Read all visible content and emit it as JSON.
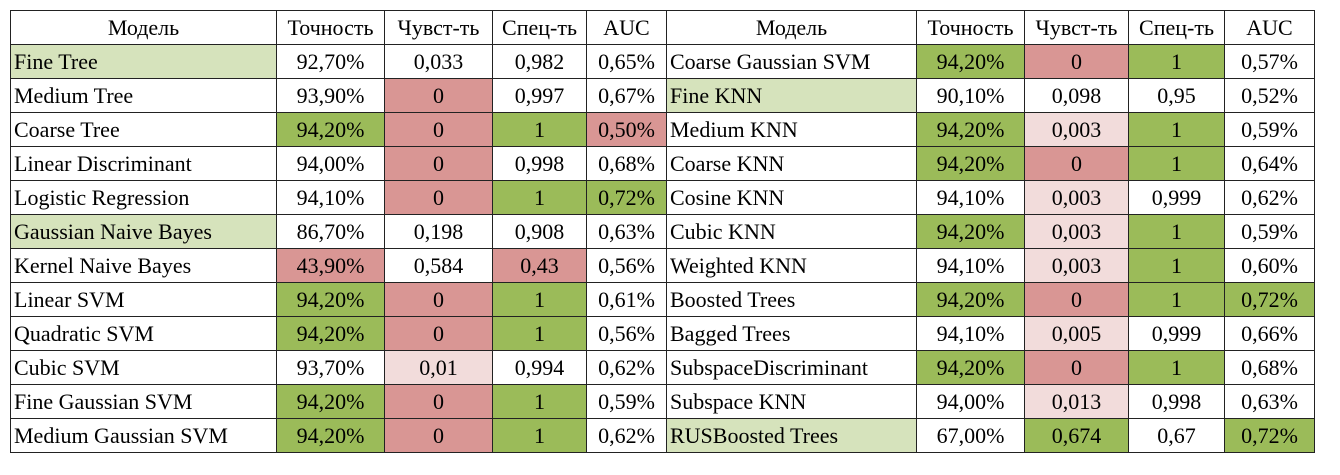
{
  "colors": {
    "lightgreen": "#d6e3bc",
    "green": "#9bbb59",
    "red": "#d99694",
    "pink": "#f2dcdb"
  },
  "headers": [
    "Модель",
    "Точность",
    "Чувст-ть",
    "Спец-ть",
    "AUC",
    "Модель",
    "Точность",
    "Чувст-ть",
    "Спец-ть",
    "AUC"
  ],
  "rows": [
    [
      {
        "text": "Fine Tree",
        "hl": "lightgreen"
      },
      {
        "text": "92,70%",
        "hl": ""
      },
      {
        "text": "0,033",
        "hl": ""
      },
      {
        "text": "0,982",
        "hl": ""
      },
      {
        "text": "0,65%",
        "hl": ""
      },
      {
        "text": "Coarse Gaussian SVM",
        "hl": ""
      },
      {
        "text": "94,20%",
        "hl": "green"
      },
      {
        "text": "0",
        "hl": "red"
      },
      {
        "text": "1",
        "hl": "green"
      },
      {
        "text": "0,57%",
        "hl": ""
      }
    ],
    [
      {
        "text": "Medium Tree",
        "hl": ""
      },
      {
        "text": "93,90%",
        "hl": ""
      },
      {
        "text": "0",
        "hl": "red"
      },
      {
        "text": "0,997",
        "hl": ""
      },
      {
        "text": "0,67%",
        "hl": ""
      },
      {
        "text": "Fine KNN",
        "hl": "lightgreen"
      },
      {
        "text": "90,10%",
        "hl": ""
      },
      {
        "text": "0,098",
        "hl": ""
      },
      {
        "text": "0,95",
        "hl": ""
      },
      {
        "text": "0,52%",
        "hl": ""
      }
    ],
    [
      {
        "text": "Coarse Tree",
        "hl": ""
      },
      {
        "text": "94,20%",
        "hl": "green"
      },
      {
        "text": "0",
        "hl": "red"
      },
      {
        "text": "1",
        "hl": "green"
      },
      {
        "text": "0,50%",
        "hl": "red"
      },
      {
        "text": "Medium KNN",
        "hl": ""
      },
      {
        "text": "94,20%",
        "hl": "green"
      },
      {
        "text": "0,003",
        "hl": "pink"
      },
      {
        "text": "1",
        "hl": "green"
      },
      {
        "text": "0,59%",
        "hl": ""
      }
    ],
    [
      {
        "text": "Linear Discriminant",
        "hl": ""
      },
      {
        "text": "94,00%",
        "hl": ""
      },
      {
        "text": "0",
        "hl": "red"
      },
      {
        "text": "0,998",
        "hl": ""
      },
      {
        "text": "0,68%",
        "hl": ""
      },
      {
        "text": "Coarse KNN",
        "hl": ""
      },
      {
        "text": "94,20%",
        "hl": "green"
      },
      {
        "text": "0",
        "hl": "red"
      },
      {
        "text": "1",
        "hl": "green"
      },
      {
        "text": "0,64%",
        "hl": ""
      }
    ],
    [
      {
        "text": "Logistic Regression",
        "hl": ""
      },
      {
        "text": "94,10%",
        "hl": ""
      },
      {
        "text": "0",
        "hl": "red"
      },
      {
        "text": "1",
        "hl": "green"
      },
      {
        "text": "0,72%",
        "hl": "green"
      },
      {
        "text": "Cosine KNN",
        "hl": ""
      },
      {
        "text": "94,10%",
        "hl": ""
      },
      {
        "text": "0,003",
        "hl": "pink"
      },
      {
        "text": "0,999",
        "hl": ""
      },
      {
        "text": "0,62%",
        "hl": ""
      }
    ],
    [
      {
        "text": "Gaussian Naive Bayes",
        "hl": "lightgreen"
      },
      {
        "text": "86,70%",
        "hl": ""
      },
      {
        "text": "0,198",
        "hl": ""
      },
      {
        "text": "0,908",
        "hl": ""
      },
      {
        "text": "0,63%",
        "hl": ""
      },
      {
        "text": "Cubic KNN",
        "hl": ""
      },
      {
        "text": "94,20%",
        "hl": "green"
      },
      {
        "text": "0,003",
        "hl": "pink"
      },
      {
        "text": "1",
        "hl": "green"
      },
      {
        "text": "0,59%",
        "hl": ""
      }
    ],
    [
      {
        "text": "Kernel Naive Bayes",
        "hl": ""
      },
      {
        "text": "43,90%",
        "hl": "red"
      },
      {
        "text": "0,584",
        "hl": ""
      },
      {
        "text": "0,43",
        "hl": "red"
      },
      {
        "text": "0,56%",
        "hl": ""
      },
      {
        "text": "Weighted KNN",
        "hl": ""
      },
      {
        "text": "94,10%",
        "hl": ""
      },
      {
        "text": "0,003",
        "hl": "pink"
      },
      {
        "text": "1",
        "hl": "green"
      },
      {
        "text": "0,60%",
        "hl": ""
      }
    ],
    [
      {
        "text": "Linear SVM",
        "hl": ""
      },
      {
        "text": "94,20%",
        "hl": "green"
      },
      {
        "text": "0",
        "hl": "red"
      },
      {
        "text": "1",
        "hl": "green"
      },
      {
        "text": "0,61%",
        "hl": ""
      },
      {
        "text": "Boosted Trees",
        "hl": ""
      },
      {
        "text": "94,20%",
        "hl": "green"
      },
      {
        "text": "0",
        "hl": "red"
      },
      {
        "text": "1",
        "hl": "green"
      },
      {
        "text": "0,72%",
        "hl": "green"
      }
    ],
    [
      {
        "text": "Quadratic SVM",
        "hl": ""
      },
      {
        "text": "94,20%",
        "hl": "green"
      },
      {
        "text": "0",
        "hl": "red"
      },
      {
        "text": "1",
        "hl": "green"
      },
      {
        "text": "0,56%",
        "hl": ""
      },
      {
        "text": "Bagged Trees",
        "hl": ""
      },
      {
        "text": "94,10%",
        "hl": ""
      },
      {
        "text": "0,005",
        "hl": "pink"
      },
      {
        "text": "0,999",
        "hl": ""
      },
      {
        "text": "0,66%",
        "hl": ""
      }
    ],
    [
      {
        "text": "Cubic SVM",
        "hl": ""
      },
      {
        "text": "93,70%",
        "hl": ""
      },
      {
        "text": "0,01",
        "hl": "pink"
      },
      {
        "text": "0,994",
        "hl": ""
      },
      {
        "text": "0,62%",
        "hl": ""
      },
      {
        "text": "SubspaceDiscriminant",
        "hl": ""
      },
      {
        "text": "94,20%",
        "hl": "green"
      },
      {
        "text": "0",
        "hl": "red"
      },
      {
        "text": "1",
        "hl": "green"
      },
      {
        "text": "0,68%",
        "hl": ""
      }
    ],
    [
      {
        "text": "Fine Gaussian SVM",
        "hl": ""
      },
      {
        "text": "94,20%",
        "hl": "green"
      },
      {
        "text": "0",
        "hl": "red"
      },
      {
        "text": "1",
        "hl": "green"
      },
      {
        "text": "0,59%",
        "hl": ""
      },
      {
        "text": "Subspace KNN",
        "hl": ""
      },
      {
        "text": "94,00%",
        "hl": ""
      },
      {
        "text": "0,013",
        "hl": "pink"
      },
      {
        "text": "0,998",
        "hl": ""
      },
      {
        "text": "0,63%",
        "hl": ""
      }
    ],
    [
      {
        "text": "Medium Gaussian SVM",
        "hl": ""
      },
      {
        "text": "94,20%",
        "hl": "green"
      },
      {
        "text": "0",
        "hl": "red"
      },
      {
        "text": "1",
        "hl": "green"
      },
      {
        "text": "0,62%",
        "hl": ""
      },
      {
        "text": "RUSBoosted Trees",
        "hl": "lightgreen"
      },
      {
        "text": "67,00%",
        "hl": ""
      },
      {
        "text": "0,674",
        "hl": "green"
      },
      {
        "text": "0,67",
        "hl": ""
      },
      {
        "text": "0,72%",
        "hl": "green"
      }
    ]
  ]
}
